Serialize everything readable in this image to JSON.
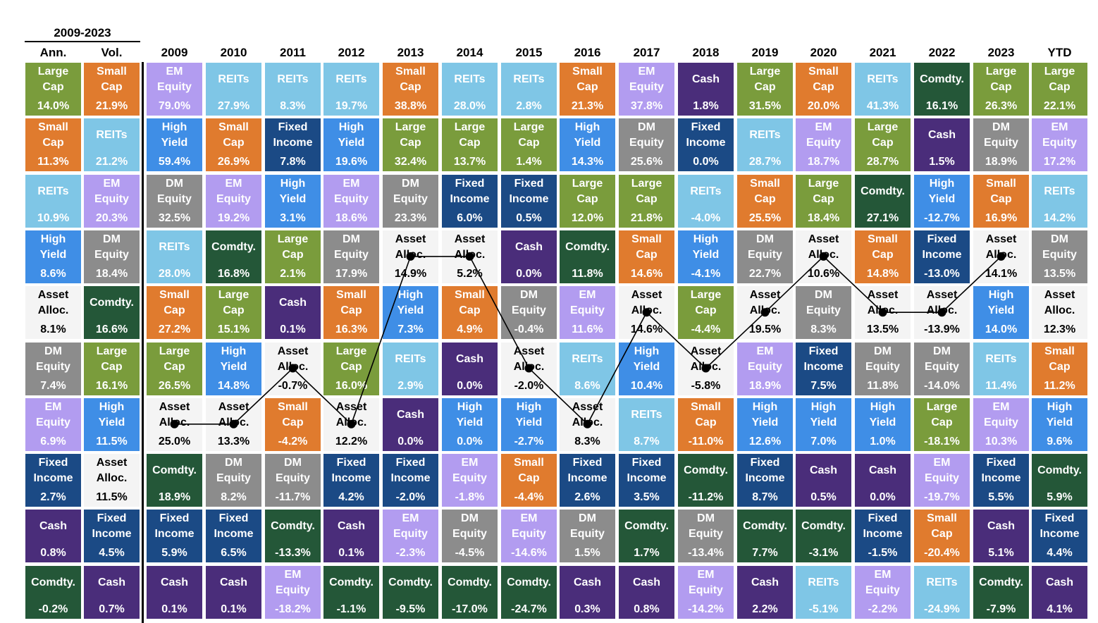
{
  "header": {
    "range_label": "2009-2023",
    "summary_columns": [
      "Ann.",
      "Vol."
    ],
    "year_columns": [
      "2009",
      "2010",
      "2011",
      "2012",
      "2013",
      "2014",
      "2015",
      "2016",
      "2017",
      "2018",
      "2019",
      "2020",
      "2021",
      "2022",
      "2023",
      "YTD"
    ]
  },
  "categories": {
    "LC": {
      "l1": "Large",
      "l2": "Cap",
      "color": "#7a9c3c",
      "text": "#ffffff"
    },
    "SC": {
      "l1": "Small",
      "l2": "Cap",
      "color": "#e07b2e",
      "text": "#ffffff"
    },
    "RE": {
      "l1": "REITs",
      "l2": "",
      "color": "#7fc6e6",
      "text": "#ffffff"
    },
    "HY": {
      "l1": "High",
      "l2": "Yield",
      "color": "#3f8ee6",
      "text": "#ffffff"
    },
    "AA": {
      "l1": "Asset",
      "l2": "Alloc.",
      "color": "#f4f4f4",
      "text": "#000000"
    },
    "DM": {
      "l1": "DM",
      "l2": "Equity",
      "color": "#8c8c8c",
      "text": "#ffffff"
    },
    "EM": {
      "l1": "EM",
      "l2": "Equity",
      "color": "#b29cf0",
      "text": "#ffffff"
    },
    "FI": {
      "l1": "Fixed",
      "l2": "Income",
      "color": "#1b4a85",
      "text": "#ffffff"
    },
    "CA": {
      "l1": "Cash",
      "l2": "",
      "color": "#4a2d7a",
      "text": "#ffffff"
    },
    "CO": {
      "l1": "Comdty.",
      "l2": "",
      "color": "#245738",
      "text": "#ffffff"
    }
  },
  "chart_data": {
    "type": "table",
    "title": "",
    "summary": {
      "Ann.": [
        [
          "LC",
          "14.0%"
        ],
        [
          "SC",
          "11.3%"
        ],
        [
          "RE",
          "10.9%"
        ],
        [
          "HY",
          "8.6%"
        ],
        [
          "AA",
          "8.1%"
        ],
        [
          "DM",
          "7.4%"
        ],
        [
          "EM",
          "6.9%"
        ],
        [
          "FI",
          "2.7%"
        ],
        [
          "CA",
          "0.8%"
        ],
        [
          "CO",
          "-0.2%"
        ]
      ],
      "Vol.": [
        [
          "SC",
          "21.9%"
        ],
        [
          "RE",
          "21.2%"
        ],
        [
          "EM",
          "20.3%"
        ],
        [
          "DM",
          "18.4%"
        ],
        [
          "CO",
          "16.6%"
        ],
        [
          "LC",
          "16.1%"
        ],
        [
          "HY",
          "11.5%"
        ],
        [
          "AA",
          "11.5%"
        ],
        [
          "FI",
          "4.5%"
        ],
        [
          "CA",
          "0.7%"
        ]
      ]
    },
    "years": {
      "2009": [
        [
          "EM",
          "79.0%"
        ],
        [
          "HY",
          "59.4%"
        ],
        [
          "DM",
          "32.5%"
        ],
        [
          "RE",
          "28.0%"
        ],
        [
          "SC",
          "27.2%"
        ],
        [
          "LC",
          "26.5%"
        ],
        [
          "AA",
          "25.0%"
        ],
        [
          "CO",
          "18.9%"
        ],
        [
          "FI",
          "5.9%"
        ],
        [
          "CA",
          "0.1%"
        ]
      ],
      "2010": [
        [
          "RE",
          "27.9%"
        ],
        [
          "SC",
          "26.9%"
        ],
        [
          "EM",
          "19.2%"
        ],
        [
          "CO",
          "16.8%"
        ],
        [
          "LC",
          "15.1%"
        ],
        [
          "HY",
          "14.8%"
        ],
        [
          "AA",
          "13.3%"
        ],
        [
          "DM",
          "8.2%"
        ],
        [
          "FI",
          "6.5%"
        ],
        [
          "CA",
          "0.1%"
        ]
      ],
      "2011": [
        [
          "RE",
          "8.3%"
        ],
        [
          "FI",
          "7.8%"
        ],
        [
          "HY",
          "3.1%"
        ],
        [
          "LC",
          "2.1%"
        ],
        [
          "CA",
          "0.1%"
        ],
        [
          "AA",
          "-0.7%"
        ],
        [
          "SC",
          "-4.2%"
        ],
        [
          "DM",
          "-11.7%"
        ],
        [
          "CO",
          "-13.3%"
        ],
        [
          "EM",
          "-18.2%"
        ]
      ],
      "2012": [
        [
          "RE",
          "19.7%"
        ],
        [
          "HY",
          "19.6%"
        ],
        [
          "EM",
          "18.6%"
        ],
        [
          "DM",
          "17.9%"
        ],
        [
          "SC",
          "16.3%"
        ],
        [
          "LC",
          "16.0%"
        ],
        [
          "AA",
          "12.2%"
        ],
        [
          "FI",
          "4.2%"
        ],
        [
          "CA",
          "0.1%"
        ],
        [
          "CO",
          "-1.1%"
        ]
      ],
      "2013": [
        [
          "SC",
          "38.8%"
        ],
        [
          "LC",
          "32.4%"
        ],
        [
          "DM",
          "23.3%"
        ],
        [
          "AA",
          "14.9%"
        ],
        [
          "HY",
          "7.3%"
        ],
        [
          "RE",
          "2.9%"
        ],
        [
          "CA",
          "0.0%"
        ],
        [
          "FI",
          "-2.0%"
        ],
        [
          "EM",
          "-2.3%"
        ],
        [
          "CO",
          "-9.5%"
        ]
      ],
      "2014": [
        [
          "RE",
          "28.0%"
        ],
        [
          "LC",
          "13.7%"
        ],
        [
          "FI",
          "6.0%"
        ],
        [
          "AA",
          "5.2%"
        ],
        [
          "SC",
          "4.9%"
        ],
        [
          "CA",
          "0.0%"
        ],
        [
          "HY",
          "0.0%"
        ],
        [
          "EM",
          "-1.8%"
        ],
        [
          "DM",
          "-4.5%"
        ],
        [
          "CO",
          "-17.0%"
        ]
      ],
      "2015": [
        [
          "RE",
          "2.8%"
        ],
        [
          "LC",
          "1.4%"
        ],
        [
          "FI",
          "0.5%"
        ],
        [
          "CA",
          "0.0%"
        ],
        [
          "DM",
          "-0.4%"
        ],
        [
          "AA",
          "-2.0%"
        ],
        [
          "HY",
          "-2.7%"
        ],
        [
          "SC",
          "-4.4%"
        ],
        [
          "EM",
          "-14.6%"
        ],
        [
          "CO",
          "-24.7%"
        ]
      ],
      "2016": [
        [
          "SC",
          "21.3%"
        ],
        [
          "HY",
          "14.3%"
        ],
        [
          "LC",
          "12.0%"
        ],
        [
          "CO",
          "11.8%"
        ],
        [
          "EM",
          "11.6%"
        ],
        [
          "RE",
          "8.6%"
        ],
        [
          "AA",
          "8.3%"
        ],
        [
          "FI",
          "2.6%"
        ],
        [
          "DM",
          "1.5%"
        ],
        [
          "CA",
          "0.3%"
        ]
      ],
      "2017": [
        [
          "EM",
          "37.8%"
        ],
        [
          "DM",
          "25.6%"
        ],
        [
          "LC",
          "21.8%"
        ],
        [
          "SC",
          "14.6%"
        ],
        [
          "AA",
          "14.6%"
        ],
        [
          "HY",
          "10.4%"
        ],
        [
          "RE",
          "8.7%"
        ],
        [
          "FI",
          "3.5%"
        ],
        [
          "CO",
          "1.7%"
        ],
        [
          "CA",
          "0.8%"
        ]
      ],
      "2018": [
        [
          "CA",
          "1.8%"
        ],
        [
          "FI",
          "0.0%"
        ],
        [
          "RE",
          "-4.0%"
        ],
        [
          "HY",
          "-4.1%"
        ],
        [
          "LC",
          "-4.4%"
        ],
        [
          "AA",
          "-5.8%"
        ],
        [
          "SC",
          "-11.0%"
        ],
        [
          "CO",
          "-11.2%"
        ],
        [
          "DM",
          "-13.4%"
        ],
        [
          "EM",
          "-14.2%"
        ]
      ],
      "2019": [
        [
          "LC",
          "31.5%"
        ],
        [
          "RE",
          "28.7%"
        ],
        [
          "SC",
          "25.5%"
        ],
        [
          "DM",
          "22.7%"
        ],
        [
          "AA",
          "19.5%"
        ],
        [
          "EM",
          "18.9%"
        ],
        [
          "HY",
          "12.6%"
        ],
        [
          "FI",
          "8.7%"
        ],
        [
          "CO",
          "7.7%"
        ],
        [
          "CA",
          "2.2%"
        ]
      ],
      "2020": [
        [
          "SC",
          "20.0%"
        ],
        [
          "EM",
          "18.7%"
        ],
        [
          "LC",
          "18.4%"
        ],
        [
          "AA",
          "10.6%"
        ],
        [
          "DM",
          "8.3%"
        ],
        [
          "FI",
          "7.5%"
        ],
        [
          "HY",
          "7.0%"
        ],
        [
          "CA",
          "0.5%"
        ],
        [
          "CO",
          "-3.1%"
        ],
        [
          "RE",
          "-5.1%"
        ]
      ],
      "2021": [
        [
          "RE",
          "41.3%"
        ],
        [
          "LC",
          "28.7%"
        ],
        [
          "CO",
          "27.1%"
        ],
        [
          "SC",
          "14.8%"
        ],
        [
          "AA",
          "13.5%"
        ],
        [
          "DM",
          "11.8%"
        ],
        [
          "HY",
          "1.0%"
        ],
        [
          "CA",
          "0.0%"
        ],
        [
          "FI",
          "-1.5%"
        ],
        [
          "EM",
          "-2.2%"
        ]
      ],
      "2022": [
        [
          "CO",
          "16.1%"
        ],
        [
          "CA",
          "1.5%"
        ],
        [
          "HY",
          "-12.7%"
        ],
        [
          "FI",
          "-13.0%"
        ],
        [
          "AA",
          "-13.9%"
        ],
        [
          "DM",
          "-14.0%"
        ],
        [
          "LC",
          "-18.1%"
        ],
        [
          "EM",
          "-19.7%"
        ],
        [
          "SC",
          "-20.4%"
        ],
        [
          "RE",
          "-24.9%"
        ]
      ],
      "2023": [
        [
          "LC",
          "26.3%"
        ],
        [
          "DM",
          "18.9%"
        ],
        [
          "SC",
          "16.9%"
        ],
        [
          "AA",
          "14.1%"
        ],
        [
          "HY",
          "14.0%"
        ],
        [
          "RE",
          "11.4%"
        ],
        [
          "EM",
          "10.3%"
        ],
        [
          "FI",
          "5.5%"
        ],
        [
          "CA",
          "5.1%"
        ],
        [
          "CO",
          "-7.9%"
        ]
      ],
      "YTD": [
        [
          "LC",
          "22.1%"
        ],
        [
          "EM",
          "17.2%"
        ],
        [
          "RE",
          "14.2%"
        ],
        [
          "DM",
          "13.5%"
        ],
        [
          "AA",
          "12.3%"
        ],
        [
          "SC",
          "11.2%"
        ],
        [
          "HY",
          "9.6%"
        ],
        [
          "CO",
          "5.9%"
        ],
        [
          "FI",
          "4.4%"
        ],
        [
          "CA",
          "4.1%"
        ]
      ]
    },
    "asset_alloc_line": {
      "series_code": "AA",
      "years": [
        "2009",
        "2010",
        "2011",
        "2012",
        "2013",
        "2014",
        "2015",
        "2016",
        "2017",
        "2018",
        "2019",
        "2020",
        "2021",
        "2022",
        "2023"
      ],
      "color": "#000000"
    }
  }
}
